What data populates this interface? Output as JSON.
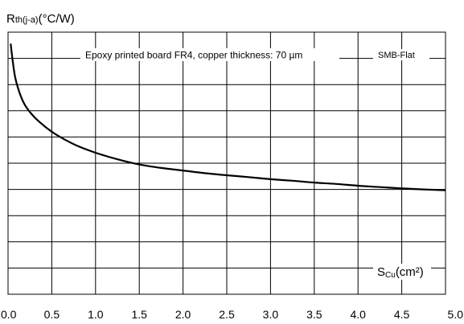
{
  "chart_data": {
    "type": "line",
    "ylabel_main": "R",
    "ylabel_sub": "th(j-a)",
    "ylabel_unit": "(°C/W)",
    "xlabel_main": "S",
    "xlabel_sub": "Cu",
    "xlabel_unit": "(cm²)",
    "annotation": "Epoxy printed board FR4, copper thickness: 70 µm",
    "legend_box": "SMB-Flat",
    "xlim": [
      0,
      5
    ],
    "ylim": [
      0,
      10
    ],
    "grid": true,
    "x_ticks": [
      "0.0",
      "0.5",
      "1.0",
      "1.5",
      "2.0",
      "2.5",
      "3.0",
      "3.5",
      "4.0",
      "4.5",
      "5.0"
    ],
    "series": [
      {
        "x": [
          0.03,
          0.05,
          0.08,
          0.12,
          0.18,
          0.25,
          0.35,
          0.5,
          0.65,
          0.8,
          1.0,
          1.25,
          1.5,
          1.75,
          2.0,
          2.25,
          2.5,
          2.75,
          3.0,
          3.25,
          3.5,
          3.75,
          4.0,
          4.25,
          4.5,
          4.75,
          5.0
        ],
        "y": [
          9.56,
          9.0,
          8.3,
          7.8,
          7.3,
          6.95,
          6.6,
          6.2,
          5.9,
          5.65,
          5.4,
          5.15,
          4.95,
          4.82,
          4.72,
          4.62,
          4.54,
          4.47,
          4.39,
          4.33,
          4.26,
          4.21,
          4.14,
          4.09,
          4.04,
          4.0,
          3.97
        ]
      }
    ]
  }
}
